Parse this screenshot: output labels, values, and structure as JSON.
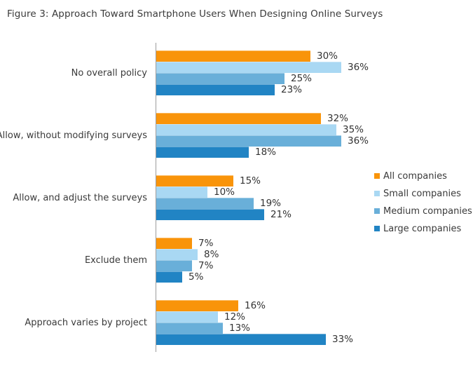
{
  "chart_data": {
    "type": "bar",
    "orientation": "horizontal",
    "title": "Figure 3: Approach Toward Smartphone Users When Designing Online Surveys",
    "categories": [
      "No overall policy",
      "Allow, without modifying surveys",
      "Allow, and adjust the surveys",
      "Exclude them",
      "Approach varies by project"
    ],
    "series": [
      {
        "name": "All companies",
        "color": "#F9940A",
        "values": [
          30,
          32,
          15,
          7,
          16
        ]
      },
      {
        "name": "Small companies",
        "color": "#A9D8F3",
        "values": [
          36,
          35,
          10,
          8,
          12
        ]
      },
      {
        "name": "Medium companies",
        "color": "#69AFD9",
        "values": [
          25,
          36,
          19,
          7,
          13
        ]
      },
      {
        "name": "Large companies",
        "color": "#2184C4",
        "values": [
          23,
          18,
          21,
          5,
          33
        ]
      }
    ],
    "value_suffix": "%",
    "xlim": [
      0,
      36
    ],
    "grid": "off",
    "legend_position": "right",
    "axis_color": "#9C9C9C",
    "background_color": "#FFFFFF",
    "text_color": "#3A3A3A"
  }
}
